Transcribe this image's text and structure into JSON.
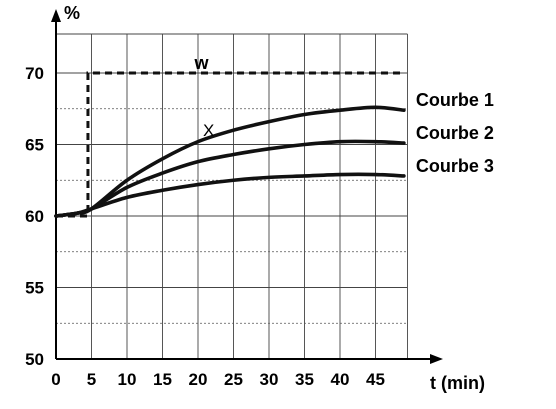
{
  "chart_data": {
    "type": "line",
    "xlabel": "t (min)",
    "ylabel": "%",
    "xlim": [
      0,
      50
    ],
    "ylim": [
      50,
      75
    ],
    "x_ticks": [
      0,
      5,
      10,
      15,
      20,
      25,
      30,
      35,
      40,
      45
    ],
    "y_ticks": [
      50,
      55,
      60,
      65,
      70
    ],
    "grid": true,
    "series": [
      {
        "name": "Courbe 1",
        "label_value": "X",
        "x": [
          0,
          3,
          5,
          10,
          15,
          20,
          25,
          30,
          35,
          40,
          45,
          49
        ],
        "y": [
          60,
          60.2,
          60.5,
          62.5,
          64.0,
          65.2,
          66.0,
          66.6,
          67.1,
          67.4,
          67.6,
          67.4
        ]
      },
      {
        "name": "Courbe 2",
        "x": [
          0,
          3,
          5,
          10,
          15,
          20,
          25,
          30,
          35,
          40,
          45,
          49
        ],
        "y": [
          60,
          60.2,
          60.5,
          62.0,
          63.0,
          63.8,
          64.3,
          64.7,
          65.0,
          65.2,
          65.2,
          65.1
        ]
      },
      {
        "name": "Courbe 3",
        "x": [
          0,
          3,
          5,
          10,
          15,
          20,
          25,
          30,
          35,
          40,
          45,
          49
        ],
        "y": [
          60,
          60.2,
          60.5,
          61.3,
          61.8,
          62.2,
          62.5,
          62.7,
          62.8,
          62.9,
          62.9,
          62.8
        ]
      }
    ],
    "setpoint": {
      "name": "w",
      "x": [
        0,
        4.5,
        4.5,
        49
      ],
      "y": [
        60,
        60,
        70,
        70
      ]
    }
  }
}
